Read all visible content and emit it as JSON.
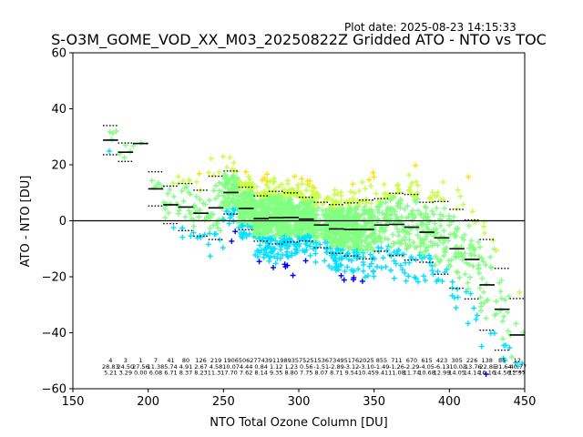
{
  "plot_date": "Plot date: 2025-08-23 14:15:33",
  "chart_data": {
    "type": "scatter",
    "title": "S-O3M_GOME_VOD_XX_M03_20250822Z Gridded ATO - NTO vs TOC",
    "xlabel": "NTO Total Ozone Column [DU]",
    "ylabel": "ATO - NTO [DU]",
    "xlim": [
      150,
      450
    ],
    "ylim": [
      -60,
      60
    ],
    "xticks": [
      150,
      200,
      250,
      300,
      350,
      400,
      450
    ],
    "yticks": [
      -60,
      -40,
      -20,
      0,
      20,
      40,
      60
    ],
    "zero_line": 0,
    "grid": false,
    "marker": "+",
    "colors": {
      "scatter_low": "#0000ff",
      "scatter_mid": "#00e0ff",
      "scatter_core": "#80ff80",
      "scatter_high": "#ffe000",
      "lines": "#000000"
    },
    "bins": [
      {
        "x": 175,
        "count": "4",
        "mean": "28.83",
        "std": "5.21",
        "mean_val": 28.8,
        "std_val": 5.2
      },
      {
        "x": 185,
        "count": "3",
        "mean": "24.50",
        "std": "3.29",
        "mean_val": 24.5,
        "std_val": 3.3
      },
      {
        "x": 195,
        "count": "1",
        "mean": "27.56",
        "std": "0.00",
        "mean_val": 27.6,
        "std_val": 0.0
      },
      {
        "x": 205,
        "count": "7",
        "mean": "11.38",
        "std": "6.08",
        "mean_val": 11.4,
        "std_val": 6.1
      },
      {
        "x": 215,
        "count": "41",
        "mean": "5.74",
        "std": "6.71",
        "mean_val": 5.7,
        "std_val": 6.7
      },
      {
        "x": 225,
        "count": "80",
        "mean": "4.91",
        "std": "8.37",
        "mean_val": 4.9,
        "std_val": 8.4
      },
      {
        "x": 235,
        "count": "126",
        "mean": "2.67",
        "std": "8.23",
        "mean_val": 2.7,
        "std_val": 8.2
      },
      {
        "x": 245,
        "count": "219",
        "mean": "4.58",
        "std": "11.31",
        "mean_val": 4.6,
        "std_val": 11.3
      },
      {
        "x": 255,
        "count": "1906",
        "mean": "10.07",
        "std": "7.70",
        "mean_val": 10.1,
        "std_val": 7.7
      },
      {
        "x": 265,
        "count": "5062",
        "mean": "4.44",
        "std": "7.62",
        "mean_val": 4.4,
        "std_val": 7.6
      },
      {
        "x": 275,
        "count": "7743",
        "mean": "0.84",
        "std": "8.14",
        "mean_val": 0.8,
        "std_val": 8.1
      },
      {
        "x": 285,
        "count": "9119",
        "mean": "1.12",
        "std": "9.35",
        "mean_val": 1.1,
        "std_val": 9.4
      },
      {
        "x": 295,
        "count": "8935",
        "mean": "1.23",
        "std": "8.80",
        "mean_val": 1.2,
        "std_val": 8.8
      },
      {
        "x": 305,
        "count": "7525",
        "mean": "0.56",
        "std": "7.75",
        "mean_val": 0.6,
        "std_val": 7.8
      },
      {
        "x": 315,
        "count": "1536",
        "mean": "-1.51",
        "std": "8.07",
        "mean_val": -1.5,
        "std_val": 8.1
      },
      {
        "x": 325,
        "count": "7349",
        "mean": "-2.89",
        "std": "8.71",
        "mean_val": -2.9,
        "std_val": 8.7
      },
      {
        "x": 335,
        "count": "5176",
        "mean": "-3.12",
        "std": "9.54",
        "mean_val": -3.1,
        "std_val": 9.5
      },
      {
        "x": 345,
        "count": "2025",
        "mean": "-3.10",
        "std": "10.45",
        "mean_val": -3.1,
        "std_val": 10.5
      },
      {
        "x": 355,
        "count": "855",
        "mean": "-1.49",
        "std": "9.41",
        "mean_val": -1.5,
        "std_val": 9.4
      },
      {
        "x": 365,
        "count": "711",
        "mean": "-1.26",
        "std": "11.08",
        "mean_val": -1.3,
        "std_val": 11.1
      },
      {
        "x": 375,
        "count": "670",
        "mean": "-2.29",
        "std": "11.74",
        "mean_val": -2.3,
        "std_val": 11.7
      },
      {
        "x": 385,
        "count": "615",
        "mean": "-4.05",
        "std": "10.68",
        "mean_val": -4.1,
        "std_val": 10.7
      },
      {
        "x": 395,
        "count": "423",
        "mean": "-6.13",
        "std": "12.99",
        "mean_val": -6.1,
        "std_val": 13.0
      },
      {
        "x": 405,
        "count": "305",
        "mean": "-10.03",
        "std": "14.05",
        "mean_val": -10.0,
        "std_val": 14.1
      },
      {
        "x": 415,
        "count": "226",
        "mean": "-13.76",
        "std": "14.14",
        "mean_val": -13.8,
        "std_val": 14.1
      },
      {
        "x": 425,
        "count": "138",
        "mean": "-22.85",
        "std": "16.16",
        "mean_val": -22.9,
        "std_val": 16.2
      },
      {
        "x": 435,
        "count": "85",
        "mean": "-31.64",
        "std": "14.56",
        "mean_val": -31.6,
        "std_val": 14.6
      },
      {
        "x": 445,
        "count": "12",
        "mean": "-40.77",
        "std": "12.97",
        "mean_val": -40.8,
        "std_val": 13.0
      }
    ]
  }
}
